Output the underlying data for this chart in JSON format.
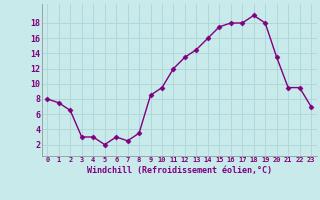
{
  "x": [
    0,
    1,
    2,
    3,
    4,
    5,
    6,
    7,
    8,
    9,
    10,
    11,
    12,
    13,
    14,
    15,
    16,
    17,
    18,
    19,
    20,
    21,
    22,
    23
  ],
  "y": [
    8,
    7.5,
    6.5,
    3,
    3,
    2,
    3,
    2.5,
    3.5,
    8.5,
    9.5,
    12,
    13.5,
    14.5,
    16,
    17.5,
    18,
    18,
    19,
    18,
    13.5,
    9.5,
    9.5,
    7
  ],
  "line_color": "#800080",
  "marker": "D",
  "marker_size": 2.5,
  "bg_color": "#c8eaea",
  "grid_color": "#b0d8d8",
  "xlabel": "Windchill (Refroidissement éolien,°C)",
  "xlabel_color": "#800080",
  "tick_color": "#800080",
  "yticks": [
    2,
    4,
    6,
    8,
    10,
    12,
    14,
    16,
    18
  ],
  "ylim": [
    0.5,
    20.5
  ],
  "xlim": [
    -0.5,
    23.5
  ]
}
